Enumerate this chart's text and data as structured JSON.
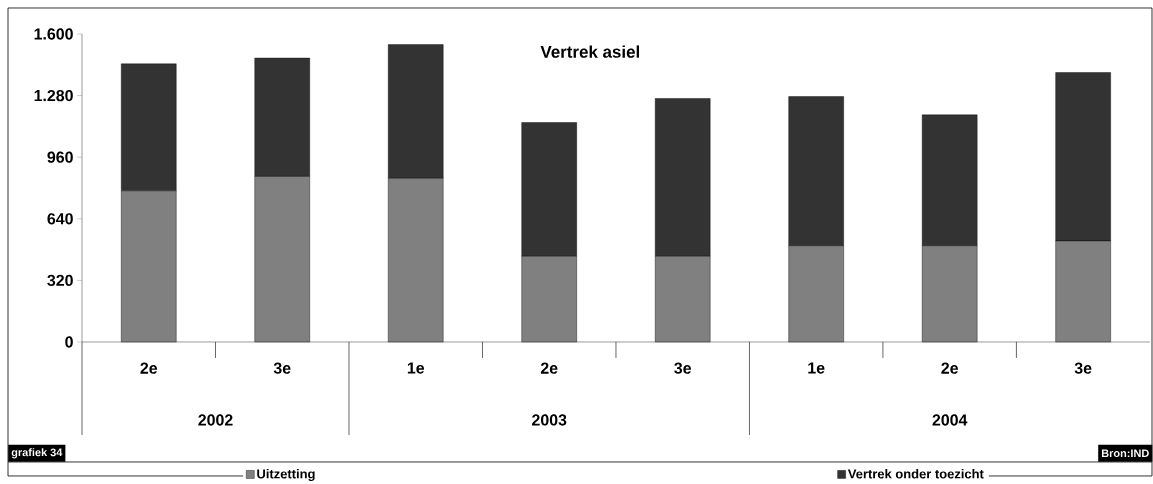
{
  "chart_data": {
    "type": "bar",
    "stacked": true,
    "title": "Vertrek asiel",
    "categories": [
      "2e",
      "3e",
      "1e",
      "2e",
      "3e",
      "1e",
      "2e",
      "3e"
    ],
    "series": [
      {
        "name": "Uitzetting",
        "color": "#808080",
        "values": [
          785,
          860,
          850,
          445,
          445,
          500,
          500,
          525
        ]
      },
      {
        "name": "Vertrek onder toezicht",
        "color": "#333333",
        "values": [
          660,
          615,
          695,
          695,
          820,
          775,
          680,
          875
        ]
      }
    ],
    "ylim": [
      0,
      1600
    ],
    "yticks": [
      0,
      320,
      640,
      960,
      {
        "value": 1280,
        "label": "1.280"
      },
      {
        "value": 1600,
        "label": "1.600"
      }
    ],
    "legend": "bottom",
    "annotations": [
      "2002",
      "2003",
      "2004",
      "grafiek 34",
      "Bron:IND"
    ]
  }
}
